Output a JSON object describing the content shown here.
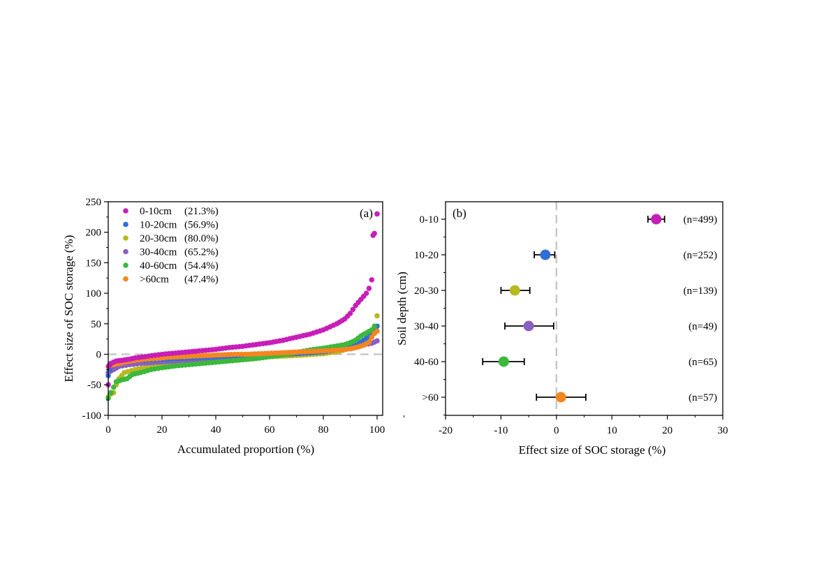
{
  "chart_data": [
    {
      "type": "scatter",
      "panel_label": "(a)",
      "xlabel": "Accumulated proportion (%)",
      "ylabel": "Effect size of SOC storage (%)",
      "xlim": [
        0,
        102
      ],
      "ylim": [
        -100,
        250
      ],
      "xticks": [
        "0",
        "20",
        "40",
        "60",
        "80",
        "100"
      ],
      "yticks": [
        "-100",
        "-50",
        "0",
        "50",
        "100",
        "150",
        "200",
        "250"
      ],
      "reference_line": {
        "y": 0,
        "style": "dashed",
        "color": "#c8c8c8"
      },
      "legend_position": "top-left",
      "series": [
        {
          "name": "0-10cm",
          "pct": "(21.3%)",
          "color": "#c81eb8",
          "n": 499,
          "points": [
            [
              0,
              -50
            ],
            [
              0.2,
              -20
            ],
            [
              0.4,
              -18
            ],
            [
              0.7,
              -17
            ],
            [
              1,
              -15
            ],
            [
              2,
              -13
            ],
            [
              3,
              -11
            ],
            [
              5,
              -10
            ],
            [
              8,
              -8
            ],
            [
              10,
              -6
            ],
            [
              15,
              -3
            ],
            [
              20,
              0
            ],
            [
              25,
              2
            ],
            [
              30,
              4
            ],
            [
              35,
              6
            ],
            [
              40,
              8
            ],
            [
              45,
              11
            ],
            [
              50,
              13
            ],
            [
              55,
              16
            ],
            [
              60,
              19
            ],
            [
              65,
              23
            ],
            [
              70,
              28
            ],
            [
              75,
              33
            ],
            [
              80,
              40
            ],
            [
              85,
              50
            ],
            [
              88,
              58
            ],
            [
              90,
              67
            ],
            [
              92,
              80
            ],
            [
              94,
              90
            ],
            [
              96,
              100
            ],
            [
              97,
              108
            ],
            [
              98,
              122
            ],
            [
              98.5,
              195
            ],
            [
              99,
              198
            ],
            [
              100,
              230
            ]
          ]
        },
        {
          "name": "10-20cm",
          "pct": "(56.9%)",
          "color": "#2f6fd6",
          "n": 252,
          "points": [
            [
              0,
              -35
            ],
            [
              0.5,
              -25
            ],
            [
              1,
              -20
            ],
            [
              3,
              -15
            ],
            [
              6,
              -12
            ],
            [
              10,
              -10
            ],
            [
              20,
              -8
            ],
            [
              30,
              -6
            ],
            [
              40,
              -4
            ],
            [
              50,
              -3
            ],
            [
              60,
              -1
            ],
            [
              70,
              1
            ],
            [
              80,
              4
            ],
            [
              86,
              8
            ],
            [
              90,
              14
            ],
            [
              94,
              20
            ],
            [
              96,
              26
            ],
            [
              98,
              34
            ],
            [
              99,
              42
            ],
            [
              100,
              46
            ]
          ]
        },
        {
          "name": "20-30cm",
          "pct": "(80.0%)",
          "color": "#b8b820",
          "n": 139,
          "points": [
            [
              0,
              -70
            ],
            [
              1,
              -65
            ],
            [
              2,
              -63
            ],
            [
              3,
              -50
            ],
            [
              4,
              -40
            ],
            [
              6,
              -30
            ],
            [
              10,
              -25
            ],
            [
              20,
              -18
            ],
            [
              30,
              -14
            ],
            [
              40,
              -10
            ],
            [
              50,
              -7
            ],
            [
              60,
              -4
            ],
            [
              70,
              -2
            ],
            [
              80,
              1
            ],
            [
              86,
              5
            ],
            [
              90,
              10
            ],
            [
              94,
              17
            ],
            [
              97,
              22
            ],
            [
              98,
              30
            ],
            [
              99,
              36
            ],
            [
              100,
              63
            ]
          ]
        },
        {
          "name": "30-40cm",
          "pct": "(65.2%)",
          "color": "#8a5fbf",
          "n": 49,
          "points": [
            [
              0,
              -30
            ],
            [
              2,
              -25
            ],
            [
              4,
              -20
            ],
            [
              8,
              -17
            ],
            [
              12,
              -15
            ],
            [
              18,
              -13
            ],
            [
              25,
              -11
            ],
            [
              32,
              -9
            ],
            [
              40,
              -7
            ],
            [
              48,
              -5
            ],
            [
              56,
              -3
            ],
            [
              64,
              -1
            ],
            [
              72,
              2
            ],
            [
              80,
              5
            ],
            [
              86,
              9
            ],
            [
              90,
              12
            ],
            [
              94,
              15
            ],
            [
              98,
              18
            ],
            [
              100,
              22
            ]
          ]
        },
        {
          "name": "40-60cm",
          "pct": "(54.4%)",
          "color": "#3db83d",
          "n": 65,
          "points": [
            [
              0,
              -72
            ],
            [
              3,
              -45
            ],
            [
              5,
              -42
            ],
            [
              7,
              -40
            ],
            [
              9,
              -33
            ],
            [
              12,
              -30
            ],
            [
              16,
              -25
            ],
            [
              20,
              -22
            ],
            [
              25,
              -19
            ],
            [
              30,
              -17
            ],
            [
              35,
              -15
            ],
            [
              40,
              -13
            ],
            [
              45,
              -11
            ],
            [
              50,
              -9
            ],
            [
              55,
              -7
            ],
            [
              60,
              -4
            ],
            [
              65,
              -1
            ],
            [
              70,
              3
            ],
            [
              75,
              7
            ],
            [
              80,
              10
            ],
            [
              84,
              13
            ],
            [
              88,
              16
            ],
            [
              90,
              19
            ],
            [
              92,
              23
            ],
            [
              94,
              30
            ],
            [
              96,
              35
            ],
            [
              98,
              40
            ],
            [
              99,
              46
            ]
          ]
        },
        {
          "name": ">60cm",
          "pct": "(47.4%)",
          "color": "#f58520",
          "n": 57,
          "points": [
            [
              0,
              -20
            ],
            [
              2,
              -17
            ],
            [
              4,
              -15
            ],
            [
              7,
              -12
            ],
            [
              10,
              -10
            ],
            [
              14,
              -8
            ],
            [
              18,
              -7
            ],
            [
              22,
              -5
            ],
            [
              27,
              -4
            ],
            [
              32,
              -3
            ],
            [
              37,
              -2
            ],
            [
              42,
              -1
            ],
            [
              47,
              0
            ],
            [
              52,
              0
            ],
            [
              57,
              1
            ],
            [
              62,
              2
            ],
            [
              67,
              3
            ],
            [
              72,
              4
            ],
            [
              77,
              5
            ],
            [
              82,
              6
            ],
            [
              86,
              7
            ],
            [
              90,
              9
            ],
            [
              93,
              12
            ],
            [
              95,
              15
            ],
            [
              97,
              20
            ],
            [
              98,
              28
            ],
            [
              99,
              34
            ],
            [
              100,
              38
            ]
          ]
        }
      ]
    },
    {
      "type": "forest",
      "panel_label": "(b)",
      "xlabel": "Effect size of SOC storage (%)",
      "ylabel": "Soil depth (cm)",
      "xlim": [
        -20,
        30
      ],
      "xticks": [
        "-20",
        "-10",
        "0",
        "10",
        "20",
        "30"
      ],
      "reference_line": {
        "x": 0,
        "style": "dashed",
        "color": "#c8c8c8"
      },
      "rows": [
        {
          "label": "0-10",
          "mean": 18.0,
          "ci": [
            16.5,
            19.5
          ],
          "n_label": "(n=499)",
          "color": "#c81eb8"
        },
        {
          "label": "10-20",
          "mean": -2.0,
          "ci": [
            -4.0,
            -0.3
          ],
          "n_label": "(n=252)",
          "color": "#2f6fd6"
        },
        {
          "label": "20-30",
          "mean": -7.5,
          "ci": [
            -10.0,
            -4.8
          ],
          "n_label": "(n=139)",
          "color": "#b8b820"
        },
        {
          "label": "30-40",
          "mean": -5.0,
          "ci": [
            -9.3,
            -0.5
          ],
          "n_label": "(n=49)",
          "color": "#8a5fbf"
        },
        {
          "label": "40-60",
          "mean": -9.5,
          "ci": [
            -13.3,
            -5.8
          ],
          "n_label": "(n=65)",
          "color": "#3db83d"
        },
        {
          "label": ">60",
          "mean": 0.8,
          "ci": [
            -3.6,
            5.3
          ],
          "n_label": "(n=57)",
          "color": "#f58520"
        }
      ]
    }
  ]
}
